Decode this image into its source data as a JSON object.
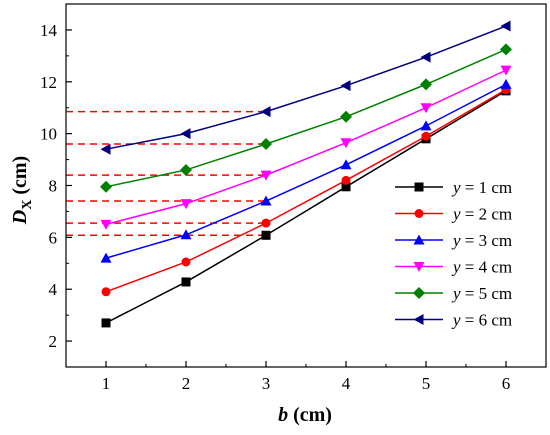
{
  "chart_data": {
    "type": "line",
    "x": [
      1,
      2,
      3,
      4,
      5,
      6
    ],
    "xlim": [
      0.5,
      6.5
    ],
    "ylim": [
      1,
      15
    ],
    "x_ticks": [
      1,
      2,
      3,
      4,
      5,
      6
    ],
    "y_ticks": [
      2,
      4,
      6,
      8,
      10,
      12,
      14
    ],
    "xlabel": {
      "main": "b",
      "unit": " (cm)"
    },
    "ylabel": {
      "main": "D",
      "sub": "X",
      "unit": " (cm)"
    },
    "legend_position": "bottom-right",
    "series": [
      {
        "name": "y = 1 cm",
        "prefix": "y",
        "suffix": " = 1 cm",
        "color": "#000000",
        "marker": "square",
        "values": [
          2.7,
          4.28,
          6.08,
          7.95,
          9.8,
          11.65
        ]
      },
      {
        "name": "y = 2 cm",
        "prefix": "y",
        "suffix": " = 2 cm",
        "color": "#ff0000",
        "marker": "circle",
        "values": [
          3.9,
          5.05,
          6.55,
          8.2,
          9.9,
          11.7
        ]
      },
      {
        "name": "y = 3 cm",
        "prefix": "y",
        "suffix": " = 3 cm",
        "color": "#0000ff",
        "marker": "triangle-up",
        "values": [
          5.2,
          6.1,
          7.4,
          8.8,
          10.3,
          11.9
        ]
      },
      {
        "name": "y = 4 cm",
        "prefix": "y",
        "suffix": " = 4 cm",
        "color": "#ff00ff",
        "marker": "triangle-down",
        "values": [
          6.5,
          7.3,
          8.4,
          9.65,
          11.0,
          12.45
        ]
      },
      {
        "name": "y = 5 cm",
        "prefix": "y",
        "suffix": " = 5 cm",
        "color": "#008000",
        "marker": "diamond",
        "values": [
          7.95,
          8.6,
          9.6,
          10.65,
          11.9,
          13.25
        ]
      },
      {
        "name": "y = 6 cm",
        "prefix": "y",
        "suffix": " = 6 cm",
        "color": "#000080",
        "marker": "triangle-left",
        "values": [
          9.4,
          10.0,
          10.85,
          11.85,
          12.95,
          14.15
        ]
      }
    ],
    "reference_lines": {
      "color": "#ff0000",
      "style": "dashed",
      "x_end": 3,
      "y_values": [
        6.08,
        6.55,
        7.4,
        8.4,
        9.6,
        10.85
      ]
    }
  }
}
